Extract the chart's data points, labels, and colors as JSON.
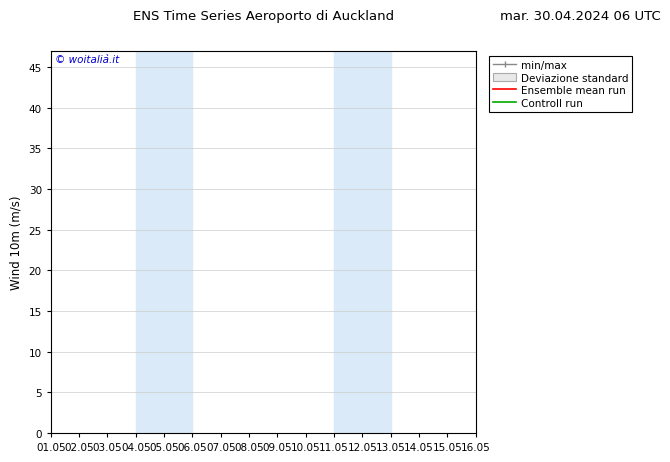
{
  "title_left": "ENS Time Series Aeroporto di Auckland",
  "title_right": "mar. 30.04.2024 06 UTC",
  "ylabel": "Wind 10m (m/s)",
  "xlim": [
    0,
    15
  ],
  "ylim": [
    0,
    47
  ],
  "yticks": [
    0,
    5,
    10,
    15,
    20,
    25,
    30,
    35,
    40,
    45
  ],
  "xtick_labels": [
    "01.05",
    "02.05",
    "03.05",
    "04.05",
    "05.05",
    "06.05",
    "07.05",
    "08.05",
    "09.05",
    "10.05",
    "11.05",
    "12.05",
    "13.05",
    "14.05",
    "15.05",
    "16.05"
  ],
  "shaded_bands": [
    {
      "xmin": 3,
      "xmax": 5,
      "color": "#daeaf8"
    },
    {
      "xmin": 10,
      "xmax": 12,
      "color": "#daeaf8"
    }
  ],
  "legend_labels": [
    "min/max",
    "Deviazione standard",
    "Ensemble mean run",
    "Controll run"
  ],
  "watermark": "© woitalià.it",
  "bg_color": "#ffffff",
  "plot_bg_color": "#ffffff",
  "grid_color": "#cccccc",
  "title_fontsize": 9.5,
  "tick_fontsize": 7.5,
  "ylabel_fontsize": 8.5,
  "legend_fontsize": 7.5
}
